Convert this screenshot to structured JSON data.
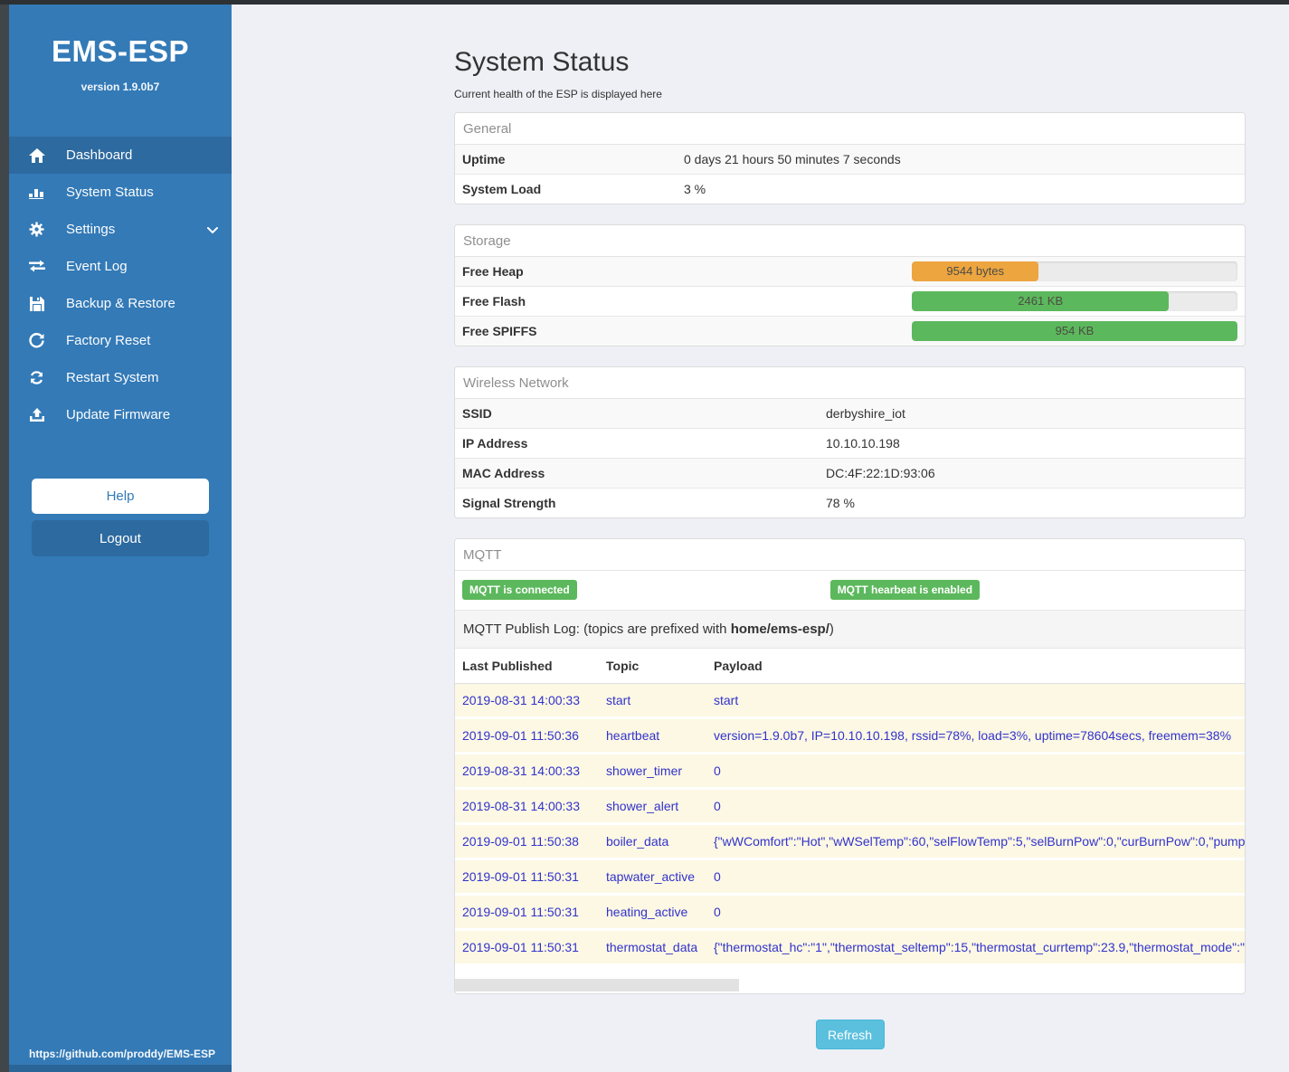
{
  "colors": {
    "sidebar_blue": "#337ab7",
    "sidebar_active_blue": "#2d6a9f",
    "success_green": "#5cb85c",
    "warning_orange": "#eda540",
    "info_blue": "#5bc0de",
    "log_row_cream": "#fcf8e3",
    "log_text_blue": "#3232cd"
  },
  "sidebar": {
    "title": "EMS-ESP",
    "version": "version 1.9.0b7",
    "items": [
      {
        "label": "Dashboard",
        "icon": "home-icon",
        "active": true
      },
      {
        "label": "System Status",
        "icon": "system-status-icon",
        "active": false
      },
      {
        "label": "Settings",
        "icon": "gear-icon",
        "active": false,
        "chevron": true
      },
      {
        "label": "Event Log",
        "icon": "exchange-icon",
        "active": false
      },
      {
        "label": "Backup & Restore",
        "icon": "save-icon",
        "active": false
      },
      {
        "label": "Factory Reset",
        "icon": "undo-icon",
        "active": false
      },
      {
        "label": "Restart System",
        "icon": "sync-icon",
        "active": false
      },
      {
        "label": "Update Firmware",
        "icon": "upload-icon",
        "active": false
      }
    ],
    "help_label": "Help",
    "logout_label": "Logout",
    "github_url": "https://github.com/proddy/EMS-ESP"
  },
  "page": {
    "title": "System Status",
    "subtitle": "Current health of the ESP is displayed here"
  },
  "general": {
    "header": "General",
    "rows": [
      {
        "label": "Uptime",
        "value": "0 days 21 hours 50 minutes 7 seconds"
      },
      {
        "label": "System Load",
        "value": "3 %"
      }
    ]
  },
  "storage": {
    "header": "Storage",
    "rows": [
      {
        "label": "Free Heap",
        "value": "9544 bytes",
        "percent": 39,
        "color": "#eda540"
      },
      {
        "label": "Free Flash",
        "value": "2461 KB",
        "percent": 79,
        "color": "#5cb85c"
      },
      {
        "label": "Free SPIFFS",
        "value": "954 KB",
        "percent": 100,
        "color": "#5cb85c"
      }
    ]
  },
  "wireless": {
    "header": "Wireless Network",
    "rows": [
      {
        "label": "SSID",
        "value": "derbyshire_iot"
      },
      {
        "label": "IP Address",
        "value": "10.10.10.198"
      },
      {
        "label": "MAC Address",
        "value": "DC:4F:22:1D:93:06"
      },
      {
        "label": "Signal Strength",
        "value": "78 %"
      }
    ]
  },
  "mqtt": {
    "header": "MQTT",
    "badges": [
      "MQTT is connected",
      "MQTT hearbeat is enabled"
    ],
    "publish_log": {
      "prefix": "MQTT Publish Log: (topics are prefixed with ",
      "bold": "home/ems-esp/",
      "suffix": ")"
    },
    "columns": [
      "Last Published",
      "Topic",
      "Payload"
    ],
    "rows": [
      {
        "time": "2019-08-31 14:00:33",
        "topic": "start",
        "payload": "start"
      },
      {
        "time": "2019-09-01 11:50:36",
        "topic": "heartbeat",
        "payload": "version=1.9.0b7, IP=10.10.10.198, rssid=78%, load=3%, uptime=78604secs, freemem=38%"
      },
      {
        "time": "2019-08-31 14:00:33",
        "topic": "shower_timer",
        "payload": "0"
      },
      {
        "time": "2019-08-31 14:00:33",
        "topic": "shower_alert",
        "payload": "0"
      },
      {
        "time": "2019-09-01 11:50:38",
        "topic": "boiler_data",
        "payload": "{\"wWComfort\":\"Hot\",\"wWSelTemp\":60,\"selFlowTemp\":5,\"selBurnPow\":0,\"curBurnPow\":0,\"pump"
      },
      {
        "time": "2019-09-01 11:50:31",
        "topic": "tapwater_active",
        "payload": "0"
      },
      {
        "time": "2019-09-01 11:50:31",
        "topic": "heating_active",
        "payload": "0"
      },
      {
        "time": "2019-09-01 11:50:31",
        "topic": "thermostat_data",
        "payload": "{\"thermostat_hc\":\"1\",\"thermostat_seltemp\":15,\"thermostat_currtemp\":23.9,\"thermostat_mode\":\""
      }
    ]
  },
  "refresh_label": "Refresh"
}
